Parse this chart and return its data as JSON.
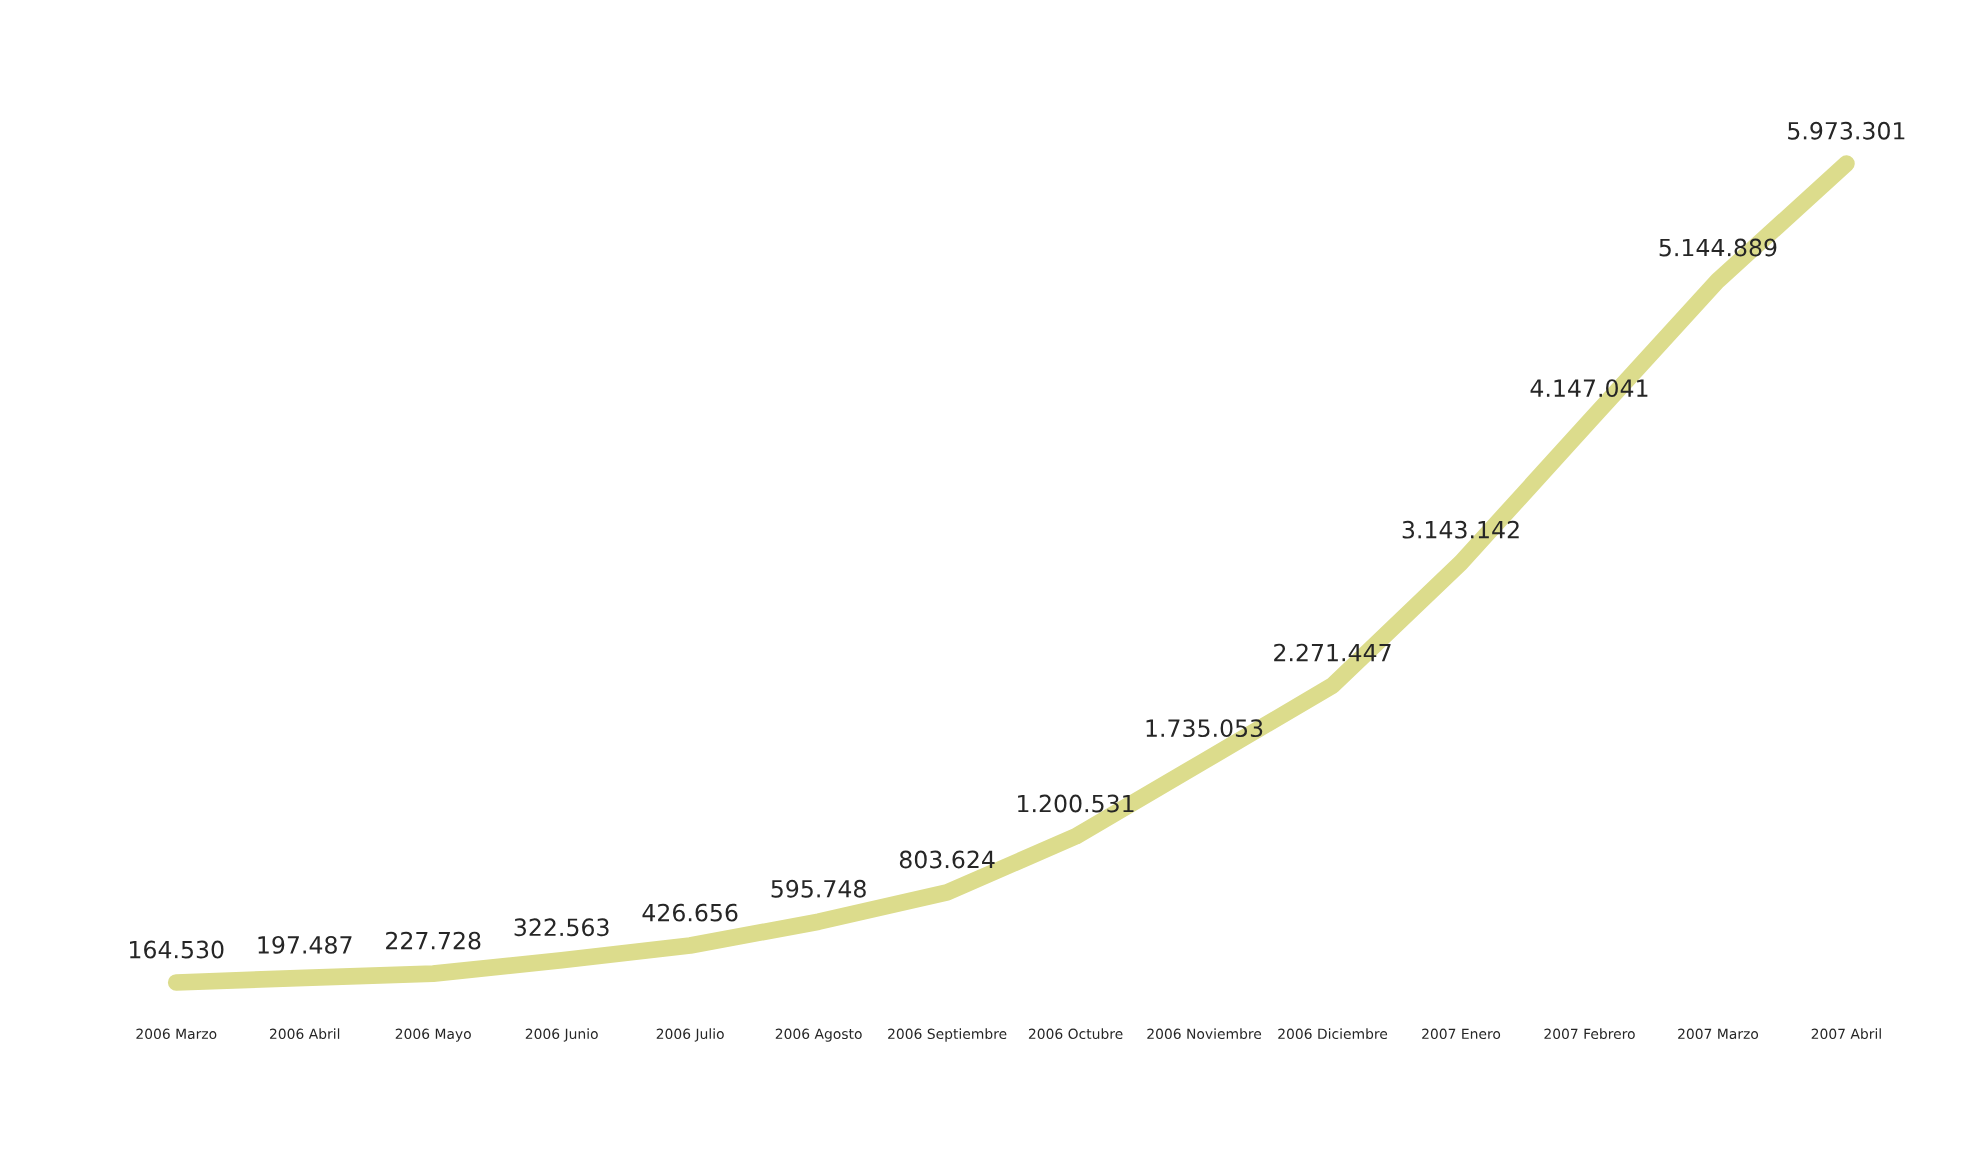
{
  "chart_data": {
    "type": "line",
    "categories": [
      "2006 Marzo",
      "2006 Abril",
      "2006 Mayo",
      "2006 Junio",
      "2006 Julio",
      "2006 Agosto",
      "2006 Septiembre",
      "2006 Octubre",
      "2006 Noviembre",
      "2006 Diciembre",
      "2007 Enero",
      "2007 Febrero",
      "2007 Marzo",
      "2007 Abril"
    ],
    "series": [
      {
        "color": "#dcdc8c",
        "values": [
          164530,
          197487,
          227728,
          322563,
          426656,
          595748,
          803624,
          1200531,
          1735053,
          2271447,
          3143142,
          4147041,
          5144889,
          5973301
        ],
        "value_labels": [
          "164.530",
          "197.487",
          "227.728",
          "322.563",
          "426.656",
          "595.748",
          "803.624",
          "1.200.531",
          "1.735.053",
          "2.271.447",
          "3.143.142",
          "4.147.041",
          "5.144.889",
          "5.973.301"
        ]
      }
    ],
    "grid": false,
    "legend": false,
    "marker": "none",
    "line_style": "solid",
    "tick_labels": "x"
  }
}
